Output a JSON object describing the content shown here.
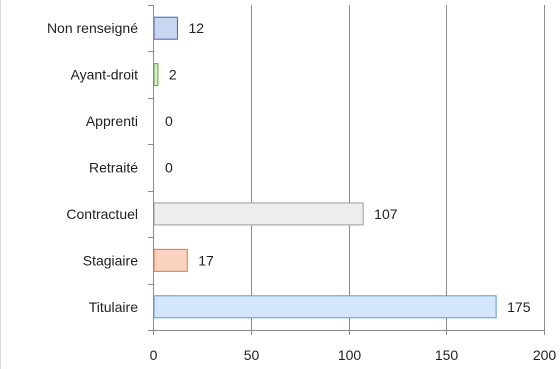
{
  "chart_data": {
    "type": "bar",
    "orientation": "horizontal",
    "categories": [
      "Non renseigné",
      "Ayant-droit",
      "Apprenti",
      "Retraité",
      "Contractuel",
      "Stagiaire",
      "Titulaire"
    ],
    "values": [
      12,
      2,
      0,
      0,
      107,
      17,
      175
    ],
    "xlim": [
      0,
      200
    ],
    "xticks": [
      0,
      50,
      100,
      150,
      200
    ],
    "grid": true,
    "legend": "none",
    "bar_fill": [
      "#c9d6ef",
      "#d9eccb",
      "#f2f2f2",
      "#f2f2f2",
      "#ededed",
      "#fbd3c0",
      "#d3e6fb"
    ],
    "bar_stroke": [
      "#3f68b0",
      "#5ea53a",
      "#8f8f8f",
      "#8f8f8f",
      "#9a9a9a",
      "#e8743b",
      "#5b9bd5"
    ]
  }
}
